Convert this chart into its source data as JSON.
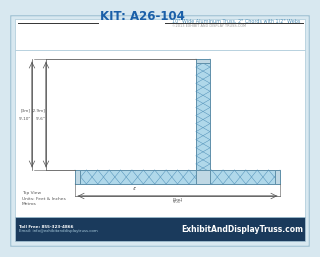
{
  "title": "KIT: A26-104",
  "subtitle": "10\" Wide Aluminum Truss, 2\" Chords with 1/2\" Webs",
  "copyright": "©2013 EXHIBIT AND DISPLAY TRUSS.COM",
  "bg_outer": "#d8e8f0",
  "bg_inner": "#eef4f8",
  "title_color": "#1a5fa8",
  "subtitle_color": "#5090b8",
  "truss_fill": "#b0d8ea",
  "truss_stroke": "#6090aa",
  "truss_x_color": "#5090b8",
  "dim_color": "#555555",
  "footer_bg": "#1a3a5c",
  "dim_v1_label1": "[3m]",
  "dim_v1_label2": "9'-10\"",
  "dim_v2_label1": "[2.9m]",
  "dim_v2_label2": "9'-6\"",
  "dim_h_label1": "[3m]",
  "dim_h_label2": "9'-6\"",
  "dim_small": "4\""
}
